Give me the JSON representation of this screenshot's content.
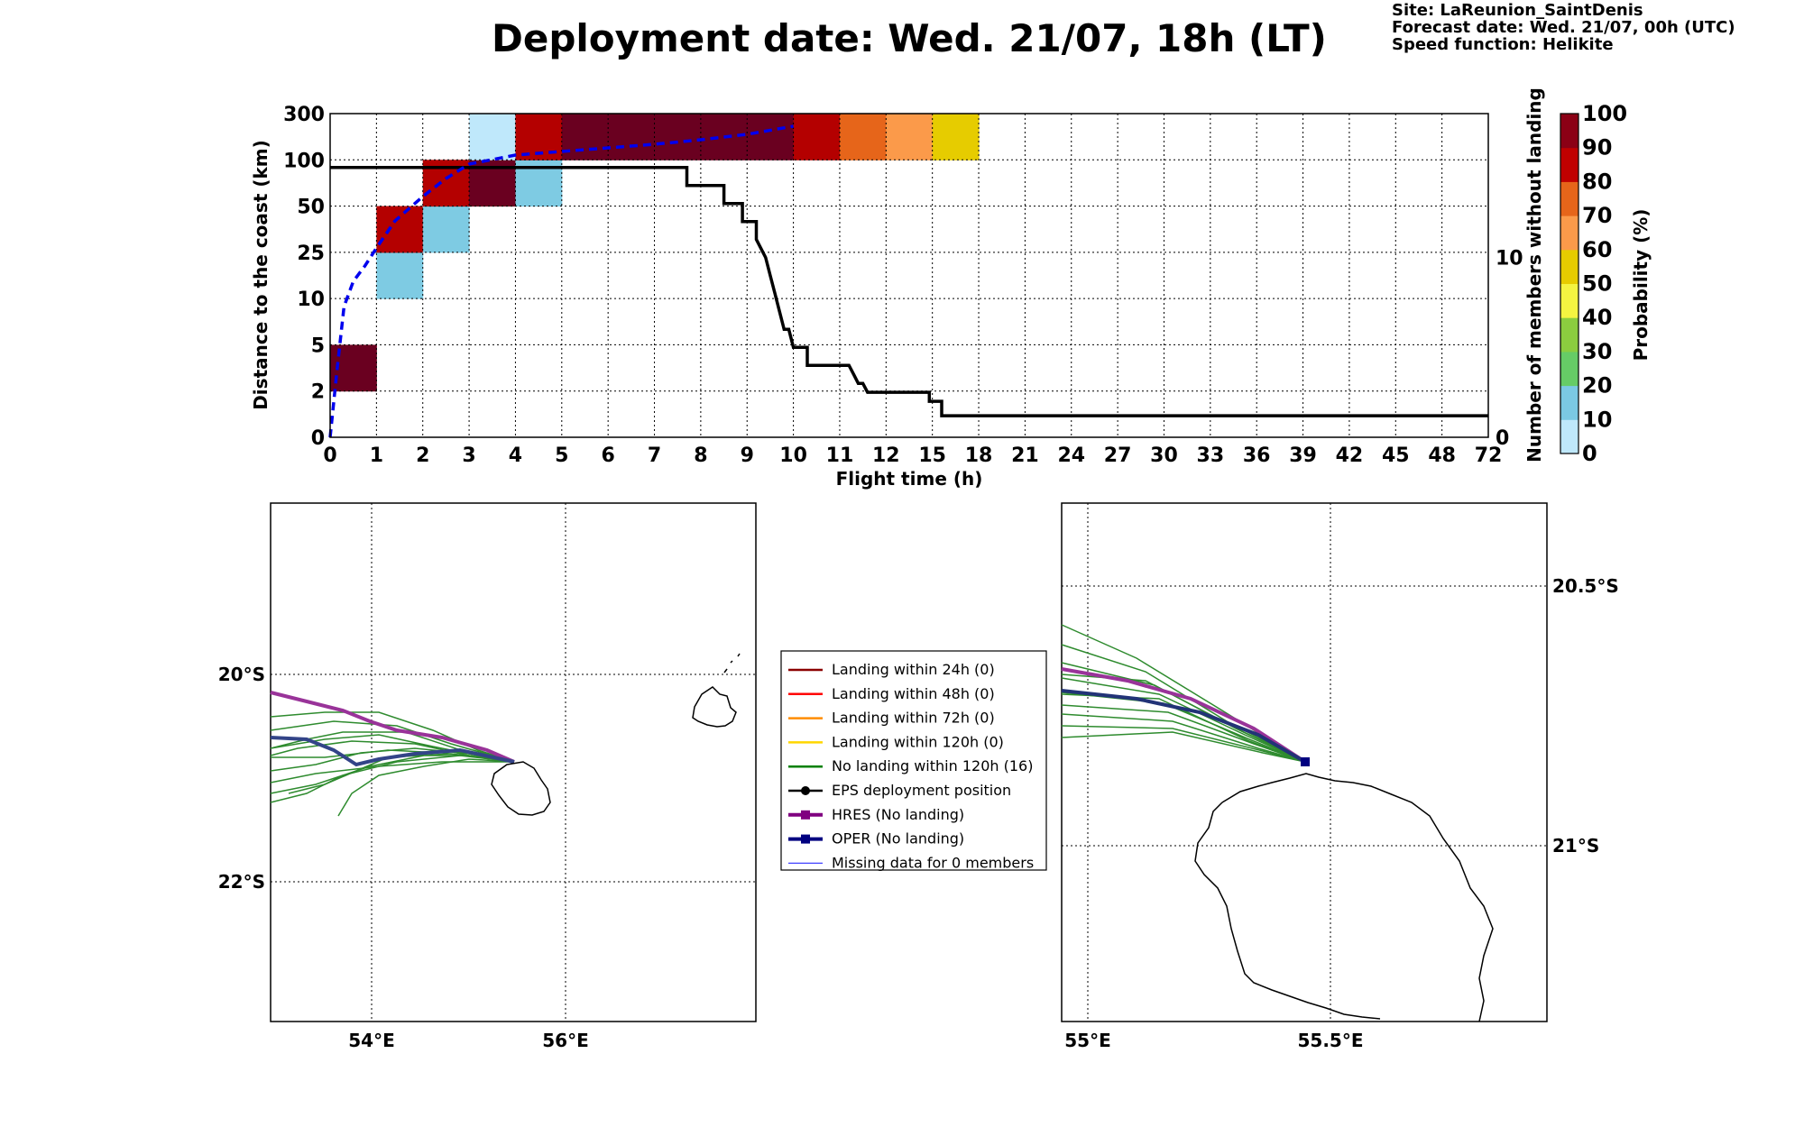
{
  "header": {
    "title": "Deployment date: Wed. 21/07, 18h (LT)",
    "site": "Site: LaReunion_SaintDenis",
    "forecast_date": "Forecast date: Wed. 21/07, 00h (UTC)",
    "speed_function": "Speed function: Helikite"
  },
  "chart_data": [
    {
      "type": "heatmap",
      "name": "flight-time-distance",
      "xlabel": "Flight time (h)",
      "ylabel": "Distance to the coast (km)",
      "ylabel_right": "Number of members without landing",
      "colorbar_label": "Probability (%)",
      "x_ticks": [
        "0",
        "1",
        "2",
        "3",
        "4",
        "5",
        "6",
        "7",
        "8",
        "9",
        "10",
        "11",
        "12",
        "15",
        "18",
        "21",
        "24",
        "27",
        "30",
        "33",
        "36",
        "39",
        "42",
        "45",
        "48",
        "72"
      ],
      "y_ticks": [
        "0",
        "2",
        "5",
        "10",
        "25",
        "50",
        "100",
        "300"
      ],
      "y2_ticks": [
        "0",
        "10"
      ],
      "y2_range": [
        0,
        18
      ],
      "colorbar_ticks": [
        "0",
        "10",
        "20",
        "30",
        "40",
        "50",
        "60",
        "70",
        "80",
        "90",
        "100"
      ],
      "colorbar_colors": [
        "#bfe8fb",
        "#7bc9e3",
        "#66cc66",
        "#8bcd3f",
        "#f4f441",
        "#e6cc00",
        "#fb9a4a",
        "#e6651a",
        "#c00000",
        "#8b0015"
      ],
      "grid": true,
      "cells": [
        {
          "col": 0,
          "row": 1,
          "color": "#6a0020"
        },
        {
          "col": 1,
          "row": 3,
          "color": "#7ecbe3"
        },
        {
          "col": 1,
          "row": 4,
          "color": "#b40000"
        },
        {
          "col": 2,
          "row": 4,
          "color": "#7ecbe3"
        },
        {
          "col": 2,
          "row": 5,
          "color": "#b40000"
        },
        {
          "col": 3,
          "row": 5,
          "color": "#6a0020"
        },
        {
          "col": 3,
          "row": 6,
          "color": "#bfe8fb"
        },
        {
          "col": 4,
          "row": 5,
          "color": "#7ecbe3"
        },
        {
          "col": 4,
          "row": 6,
          "color": "#b40000"
        },
        {
          "col": 5,
          "row": 6,
          "color": "#6a0020"
        },
        {
          "col": 6,
          "row": 6,
          "color": "#6a0020"
        },
        {
          "col": 7,
          "row": 6,
          "color": "#6a0020"
        },
        {
          "col": 8,
          "row": 6,
          "color": "#6a0020"
        },
        {
          "col": 9,
          "row": 6,
          "color": "#6a0020"
        },
        {
          "col": 10,
          "row": 6,
          "color": "#b40000"
        },
        {
          "col": 11,
          "row": 6,
          "color": "#e6651a"
        },
        {
          "col": 12,
          "row": 6,
          "color": "#fb9a4a"
        },
        {
          "col": 13,
          "row": 6,
          "color": "#e6cc00"
        }
      ],
      "members_line": {
        "x": [
          0,
          7.7,
          7.7,
          8.5,
          8.5,
          8.9,
          8.9,
          9.2,
          9.2,
          9.4,
          9.5,
          9.6,
          9.7,
          9.8,
          9.9,
          10,
          10.3,
          10.3,
          11.2,
          11.3,
          11.4,
          11.5,
          11.6,
          12,
          14.8,
          14.8,
          15.6,
          15.6,
          72
        ],
        "y": [
          15,
          15,
          14,
          14,
          13,
          13,
          12,
          12,
          11,
          10,
          9,
          8,
          7,
          6,
          6,
          5,
          5,
          4,
          4,
          3.5,
          3,
          3,
          2.5,
          2.5,
          2.5,
          2,
          2,
          1.2,
          1.2
        ],
        "color": "#000000"
      },
      "median_line": {
        "color": "#0000ee",
        "style": "dashed"
      }
    },
    {
      "type": "scatter",
      "name": "trajectory-map-wide",
      "x_ticks": [
        "54°E",
        "56°E"
      ],
      "y_ticks": [
        "20°S",
        "22°S"
      ],
      "grid": true
    },
    {
      "type": "scatter",
      "name": "trajectory-map-zoom",
      "x_ticks": [
        "55°E",
        "55.5°E"
      ],
      "y_ticks": [
        "20.5°S",
        "21°S"
      ],
      "grid": true
    }
  ],
  "legend": {
    "items": [
      {
        "label": "Landing within 24h (0)",
        "color": "#8b0000",
        "marker": "line"
      },
      {
        "label": "Landing within 48h (0)",
        "color": "#ff0000",
        "marker": "line"
      },
      {
        "label": "Landing within 72h (0)",
        "color": "#ff8c00",
        "marker": "line"
      },
      {
        "label": "Landing within 120h (0)",
        "color": "#ffd700",
        "marker": "line"
      },
      {
        "label": "No landing within 120h (16)",
        "color": "#008000",
        "marker": "line"
      },
      {
        "label": "EPS deployment position",
        "color": "#000000",
        "marker": "dot"
      },
      {
        "label": "HRES (No landing)",
        "color": "#800080",
        "marker": "square"
      },
      {
        "label": "OPER (No landing)",
        "color": "#000080",
        "marker": "square"
      },
      {
        "label": "Missing data for 0 members",
        "color": "#4040ff",
        "marker": "thin"
      }
    ]
  }
}
